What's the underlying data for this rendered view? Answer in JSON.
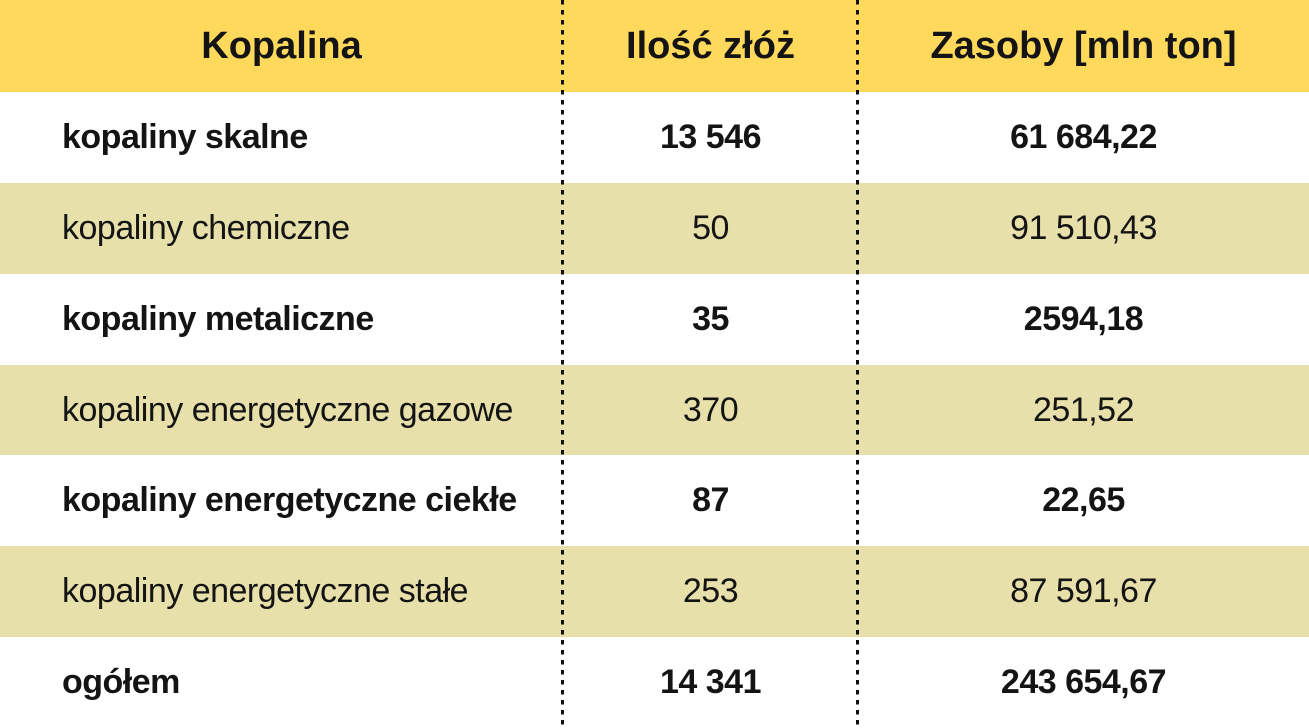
{
  "table": {
    "columns": {
      "mineral": "Kopalina",
      "deposits": "Ilość złóż",
      "resources": "Zasoby [mln ton]"
    },
    "rows": [
      {
        "name": "kopaliny skalne",
        "deposits": "13 546",
        "resources": "61 684,22"
      },
      {
        "name": "kopaliny chemiczne",
        "deposits": "50",
        "resources": "91 510,43"
      },
      {
        "name": "kopaliny metaliczne",
        "deposits": "35",
        "resources": "2594,18"
      },
      {
        "name": "kopaliny energetyczne gazowe",
        "deposits": "370",
        "resources": "251,52"
      },
      {
        "name": "kopaliny energetyczne ciekłe",
        "deposits": "87",
        "resources": "22,65"
      },
      {
        "name": "kopaliny energetyczne stałe",
        "deposits": "253",
        "resources": "87 591,67"
      },
      {
        "name": "ogółem",
        "deposits": "14 341",
        "resources": "243 654,67"
      }
    ]
  },
  "colors": {
    "header_bg": "#FFD95B",
    "row_alt_bg": "#E8E0AA",
    "row_bg": "#FFFFFF",
    "text": "#141414",
    "divider": "#111111"
  },
  "chart_data": {
    "type": "table",
    "columns": [
      "Kopalina",
      "Ilość złóż",
      "Zasoby [mln ton]"
    ],
    "rows": [
      [
        "kopaliny skalne",
        13546,
        61684.22
      ],
      [
        "kopaliny chemiczne",
        50,
        91510.43
      ],
      [
        "kopaliny metaliczne",
        35,
        2594.18
      ],
      [
        "kopaliny energetyczne gazowe",
        370,
        251.52
      ],
      [
        "kopaliny energetyczne ciekłe",
        87,
        22.65
      ],
      [
        "kopaliny energetyczne stałe",
        253,
        87591.67
      ],
      [
        "ogółem",
        14341,
        243654.67
      ]
    ],
    "notes": "ogółem = total row; values use Polish number formatting (space thousands separator, comma decimal)"
  }
}
